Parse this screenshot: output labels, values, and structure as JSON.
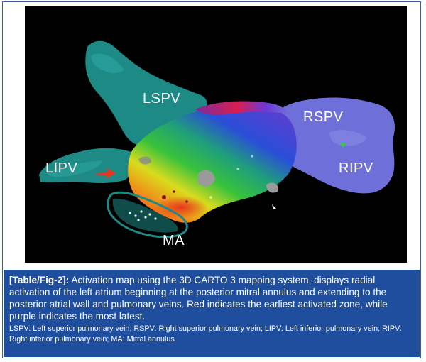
{
  "figure": {
    "labels": {
      "lspv": "LSPV",
      "rspv": "RSPV",
      "lipv": "LIPV",
      "ripv": "RIPV",
      "ma": "MA"
    },
    "colors": {
      "background": "#000000",
      "lspv_vein": "#1e8a86",
      "right_veins": "#6f6fd9",
      "earliest": "#e8341c",
      "latest": "#7a3fc9",
      "caption_band": "#1f4e9e"
    }
  },
  "caption": {
    "ref": "[Table/Fig-2]:",
    "text": " Activation map using the 3D CARTO 3 mapping system, displays radial activation of the left atrium beginning at the posterior mitral annulus and extending to the posterior atrial wall and pulmonary veins. Red indicates the earliest activated zone, while purple indicates the most latest.",
    "abbreviations": "LSPV: Left superior pulmonary vein; RSPV: Right superior pulmonary vein; LIPV: Left inferior pulmonary vein; RIPV: Right inferior pulmonary vein; MA: Mitral annulus"
  }
}
